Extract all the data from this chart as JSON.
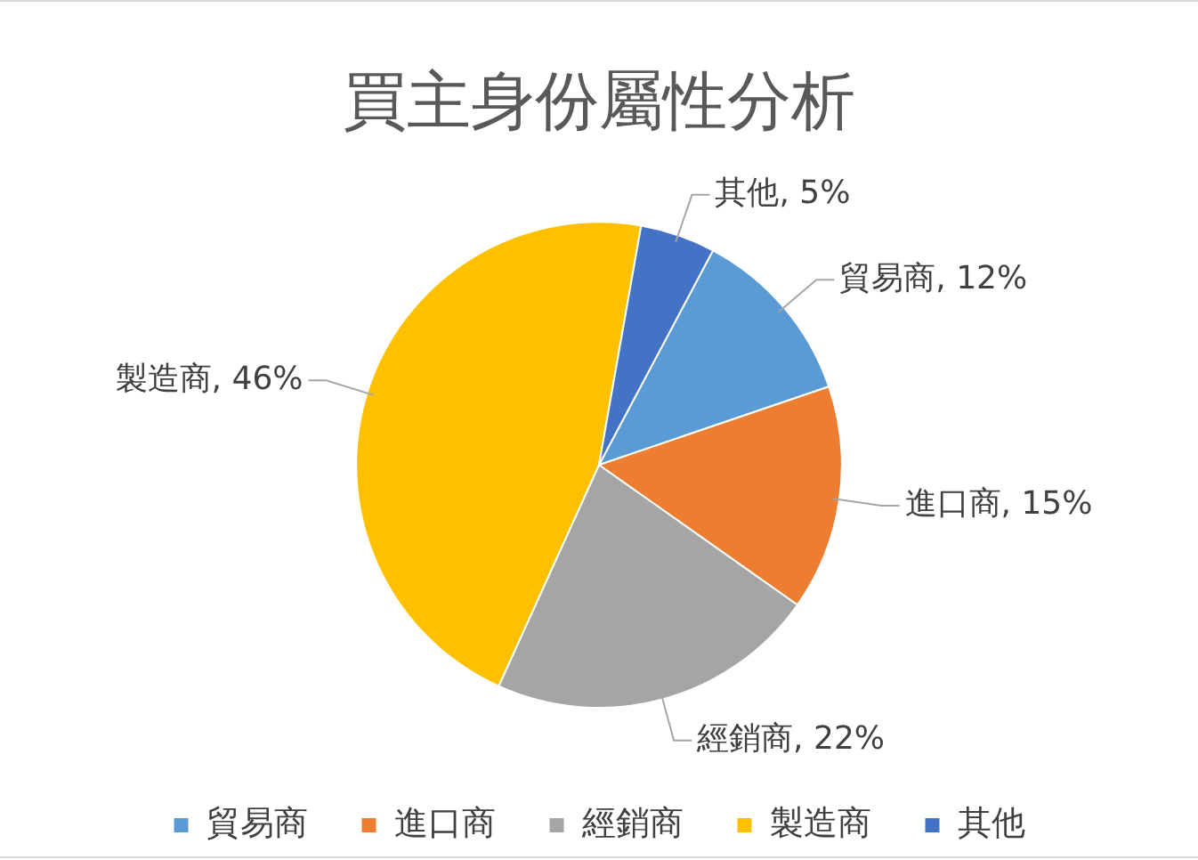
{
  "chart_data": {
    "type": "pie",
    "title": "買主身份屬性分析",
    "categories": [
      "貿易商",
      "進口商",
      "經銷商",
      "製造商",
      "其他"
    ],
    "values": [
      12,
      15,
      22,
      46,
      5
    ],
    "colors": [
      "#5b9bd5",
      "#ed7d31",
      "#a5a5a5",
      "#ffc000",
      "#4472c4"
    ],
    "value_labels": [
      "貿易商, 12%",
      "進口商, 15%",
      "經銷商, 22%",
      "製造商, 46%",
      "其他, 5%"
    ],
    "legend": "bottom"
  }
}
